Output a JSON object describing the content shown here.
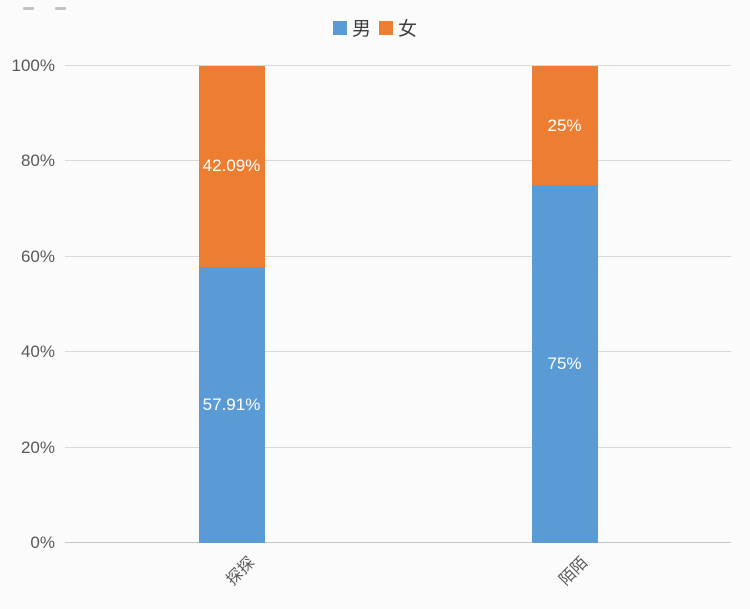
{
  "chart_data": {
    "type": "bar",
    "stacked": true,
    "percent": true,
    "title": "",
    "categories": [
      "探探",
      "陌陌"
    ],
    "series": [
      {
        "name": "男",
        "color": "#5B9BD5",
        "values": [
          57.91,
          75
        ],
        "labels": [
          "57.91%",
          "75%"
        ]
      },
      {
        "name": "女",
        "color": "#ED7D31",
        "values": [
          42.09,
          25
        ],
        "labels": [
          "42.09%",
          "25%"
        ]
      }
    ],
    "y_axis": {
      "min": 0,
      "max": 100,
      "tick_values": [
        0,
        20,
        40,
        60,
        80,
        100
      ],
      "tick_labels": [
        "0%",
        "20%",
        "40%",
        "60%",
        "80%",
        "100%"
      ]
    },
    "legend": {
      "position": "top",
      "entries": [
        {
          "label": "男",
          "color": "#5B9BD5"
        },
        {
          "label": "女",
          "color": "#ED7D31"
        }
      ]
    },
    "grid": true,
    "gridline_color": "#D9D9D9",
    "bar_label_color": "#FFFFFF"
  }
}
